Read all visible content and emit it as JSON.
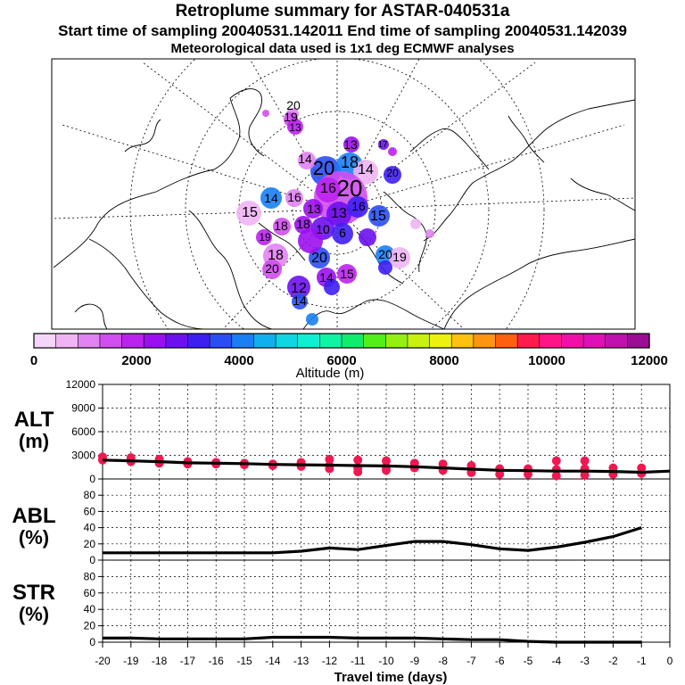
{
  "header": {
    "title": "Retroplume summary for ASTAR-040531a",
    "sampling": "Start time of sampling 20040531.142011     End time of sampling 20040531.142039",
    "met": "Meteorological data used is 1x1 deg ECMWF analyses"
  },
  "map": {
    "projection": "polar stereographic",
    "labels": [
      "20",
      "19",
      "13",
      "13",
      "17",
      "20",
      "20",
      "18",
      "14",
      "14",
      "20",
      "16",
      "13",
      "13",
      "16",
      "15",
      "14",
      "15",
      "16",
      "18",
      "19",
      "18",
      "10",
      "6",
      "20",
      "20",
      "19",
      "18",
      "20",
      "15",
      "14",
      "12",
      "14"
    ]
  },
  "colorbar": {
    "title": "Altitude (m)",
    "ticks": [
      "0",
      "2000",
      "4000",
      "6000",
      "8000",
      "10000",
      "12000"
    ],
    "colors": [
      "#f6d6f8",
      "#f0b4f4",
      "#e183f2",
      "#d24ef0",
      "#bb22ee",
      "#9b10ee",
      "#6d10ef",
      "#3e1ff2",
      "#2b4ef4",
      "#1a7ff4",
      "#10b0f0",
      "#10d6e4",
      "#10efd1",
      "#10f3a5",
      "#10ec6c",
      "#52ef18",
      "#93f010",
      "#c7f110",
      "#eef010",
      "#ffc110",
      "#ff9410",
      "#ff6010",
      "#ff1c4c",
      "#ff1588",
      "#f010a8",
      "#e010b8",
      "#c010b0",
      "#9c0c94"
    ]
  },
  "chart_data": [
    {
      "type": "line",
      "panel": "ALT",
      "ylabel": "ALT (m)",
      "ylim": [
        0,
        12000
      ],
      "yticks": [
        "12000",
        "9000",
        "6000",
        "3000",
        "0"
      ],
      "series": [
        {
          "name": "mean altitude",
          "x": [
            -20,
            -19,
            -18,
            -17,
            -16,
            -15,
            -14,
            -13,
            -12,
            -11,
            -10,
            -9,
            -8,
            -7,
            -6,
            -5,
            -4,
            -3,
            -2,
            -1,
            0
          ],
          "values": [
            2400,
            2300,
            2200,
            2050,
            2000,
            1950,
            1850,
            1800,
            1750,
            1700,
            1650,
            1550,
            1400,
            1250,
            1100,
            1050,
            1000,
            1000,
            950,
            850,
            1000
          ]
        },
        {
          "name": "cluster altitudes",
          "points": [
            [
              -20,
              2800
            ],
            [
              -20,
              2400
            ],
            [
              -19,
              2700
            ],
            [
              -19,
              2200
            ],
            [
              -18,
              2500
            ],
            [
              -18,
              2000
            ],
            [
              -17,
              2200
            ],
            [
              -17,
              1900
            ],
            [
              -16,
              2100
            ],
            [
              -16,
              1900
            ],
            [
              -15,
              2000
            ],
            [
              -15,
              1800
            ],
            [
              -14,
              1900
            ],
            [
              -14,
              1700
            ],
            [
              -13,
              2100
            ],
            [
              -13,
              1600
            ],
            [
              -12,
              2500
            ],
            [
              -12,
              1700
            ],
            [
              -12,
              1300
            ],
            [
              -11,
              2400
            ],
            [
              -11,
              1400
            ],
            [
              -11,
              900
            ],
            [
              -10,
              2300
            ],
            [
              -10,
              1500
            ],
            [
              -10,
              1100
            ],
            [
              -9,
              2000
            ],
            [
              -9,
              1400
            ],
            [
              -8,
              1900
            ],
            [
              -8,
              1100
            ],
            [
              -7,
              1700
            ],
            [
              -7,
              800
            ],
            [
              -6,
              1300
            ],
            [
              -6,
              600
            ],
            [
              -5,
              1300
            ],
            [
              -5,
              600
            ],
            [
              -4,
              2300
            ],
            [
              -4,
              1200
            ],
            [
              -4,
              400
            ],
            [
              -3,
              2300
            ],
            [
              -3,
              1300
            ],
            [
              -3,
              500
            ],
            [
              -2,
              1400
            ],
            [
              -2,
              600
            ],
            [
              -1,
              1400
            ],
            [
              -1,
              700
            ]
          ]
        }
      ]
    },
    {
      "type": "line",
      "panel": "ABL",
      "ylabel": "ABL (%)",
      "ylim": [
        0,
        100
      ],
      "yticks": [
        "80",
        "60",
        "40",
        "20",
        "0"
      ],
      "series": [
        {
          "name": "fraction in boundary layer",
          "x": [
            -20,
            -19,
            -18,
            -17,
            -16,
            -15,
            -14,
            -13,
            -12,
            -11,
            -10,
            -9,
            -8,
            -7,
            -6,
            -5,
            -4,
            -3,
            -2,
            -1
          ],
          "values": [
            9,
            9,
            9,
            9,
            9,
            9,
            9,
            11,
            15,
            13,
            18,
            23,
            23,
            19,
            14,
            12,
            16,
            22,
            29,
            40
          ]
        }
      ]
    },
    {
      "type": "line",
      "panel": "STR",
      "ylabel": "STR (%)",
      "ylim": [
        0,
        100
      ],
      "yticks": [
        "80",
        "60",
        "40",
        "20",
        "0"
      ],
      "series": [
        {
          "name": "fraction in stratosphere",
          "x": [
            -20,
            -19,
            -18,
            -17,
            -16,
            -15,
            -14,
            -13,
            -12,
            -11,
            -10,
            -9,
            -8,
            -7,
            -6,
            -5,
            -4,
            -3,
            -2,
            -1
          ],
          "values": [
            5,
            5,
            4,
            4,
            4,
            4,
            6,
            6,
            6,
            5,
            5,
            5,
            4,
            3,
            3,
            1,
            0,
            0,
            0,
            0
          ]
        }
      ]
    }
  ],
  "xaxis": {
    "label": "Travel time (days)",
    "ticks": [
      "-20",
      "-19",
      "-18",
      "-17",
      "-16",
      "-15",
      "-14",
      "-13",
      "-12",
      "-11",
      "-10",
      "-9",
      "-8",
      "-7",
      "-6",
      "-5",
      "-4",
      "-3",
      "-2",
      "-1",
      "0"
    ]
  }
}
